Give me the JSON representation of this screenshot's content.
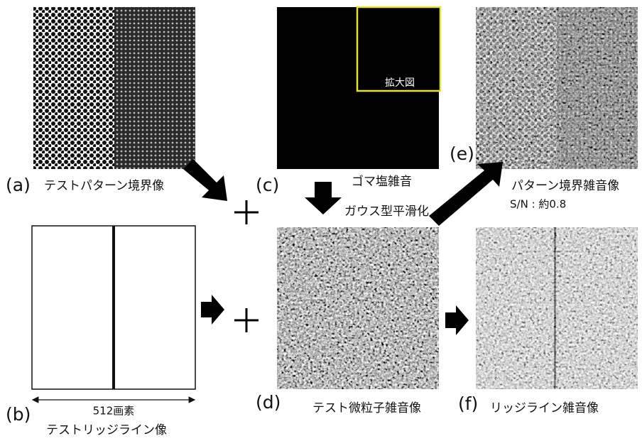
{
  "panels": {
    "a": {
      "tag": "(a)",
      "caption": "テストパターン境界像"
    },
    "b": {
      "tag": "(b)",
      "caption": "テストリッジライン像",
      "scale": "512画素"
    },
    "c": {
      "tag": "(c)",
      "caption": "ゴマ塩雑音",
      "inset": "拡大図"
    },
    "d": {
      "tag": "(d)",
      "caption": "テスト微粒子雑音像"
    },
    "e": {
      "tag": "(e)",
      "caption": "パターン境界雑音像",
      "note": "S/N : 約0.8"
    },
    "f": {
      "tag": "(f)",
      "caption": "リッジライン雑音像"
    }
  },
  "steps": {
    "smoothing": "ガウス型平滑化"
  }
}
